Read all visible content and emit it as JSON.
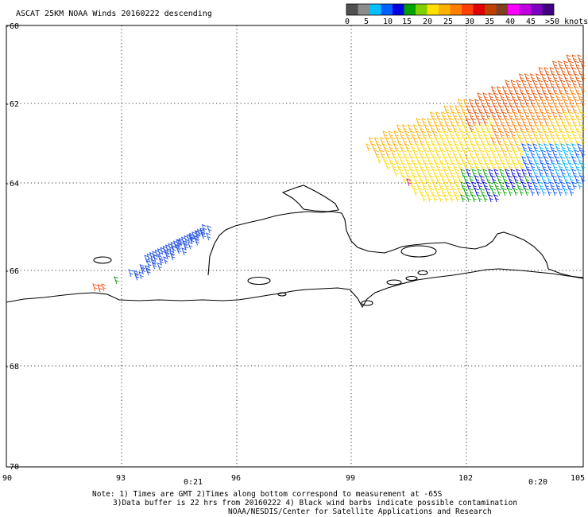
{
  "header": {
    "title": "ASCAT 25KM NOAA Winds 20160222 descending"
  },
  "legend": {
    "swatches": [
      {
        "color": "#505050"
      },
      {
        "color": "#8c8c8c"
      },
      {
        "color": "#00c0ff"
      },
      {
        "color": "#0060ff"
      },
      {
        "color": "#0000e0"
      },
      {
        "color": "#00a000"
      },
      {
        "color": "#80d000"
      },
      {
        "color": "#ffe000"
      },
      {
        "color": "#ffb000"
      },
      {
        "color": "#ff8000"
      },
      {
        "color": "#ff4000"
      },
      {
        "color": "#e00000"
      },
      {
        "color": "#c04000"
      },
      {
        "color": "#804020"
      },
      {
        "color": "#ff00ff"
      },
      {
        "color": "#c000e0"
      },
      {
        "color": "#8000c0"
      },
      {
        "color": "#400080"
      }
    ],
    "labels": [
      "0",
      "5",
      "10",
      "15",
      "20",
      "25",
      "30",
      "35",
      "40",
      "45",
      ">50 knots"
    ]
  },
  "axes": {
    "lat_labels": [
      "-60",
      "-62",
      "-64",
      "-66",
      "-68",
      "-70"
    ],
    "lon_labels": [
      "90",
      "93",
      "96",
      "99",
      "102",
      "105"
    ]
  },
  "times": {
    "t1": "0:21",
    "t2": "0:20",
    "color": "#a000a0"
  },
  "notes": {
    "line1": "Note: 1) Times are GMT 2)Times along bottom correspond to measurement at -65S",
    "line2": "3)Data buffer is 22 hrs from 20160222 4) Black wind barbs indicate possible contamination",
    "line3": "NOAA/NESDIS/Center for Satellite Applications and Research"
  }
}
